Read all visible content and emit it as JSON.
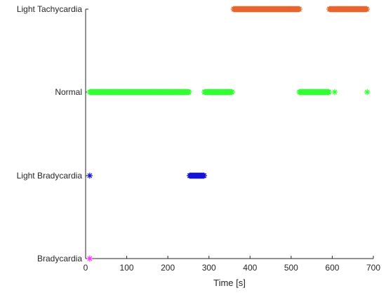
{
  "chart_data": {
    "type": "scatter",
    "title": "",
    "xlabel": "Time [s]",
    "ylabel": "",
    "xlim": [
      0,
      700
    ],
    "xticks": [
      "0",
      "100",
      "200",
      "300",
      "400",
      "500",
      "600",
      "700"
    ],
    "ycategories": [
      "Bradycardia",
      "Light Bradycardia",
      "Normal",
      "Light Tachycardia"
    ],
    "grid": false,
    "legend": "none",
    "marker": "asterisk",
    "series": [
      {
        "category": "Light Tachycardia",
        "color": "#e8652c",
        "segments": [
          [
            360,
            520
          ],
          [
            593,
            685
          ]
        ],
        "points": []
      },
      {
        "category": "Normal",
        "color": "#33ff33",
        "segments": [
          [
            10,
            253
          ],
          [
            289,
            357
          ],
          [
            520,
            592
          ]
        ],
        "points": [
          606,
          685
        ]
      },
      {
        "category": "Light Bradycardia",
        "color": "#1414d6",
        "segments": [
          [
            253,
            289
          ]
        ],
        "points": [
          10
        ]
      },
      {
        "category": "Bradycardia",
        "color": "#ff33ff",
        "segments": [],
        "points": [
          10
        ]
      }
    ]
  }
}
